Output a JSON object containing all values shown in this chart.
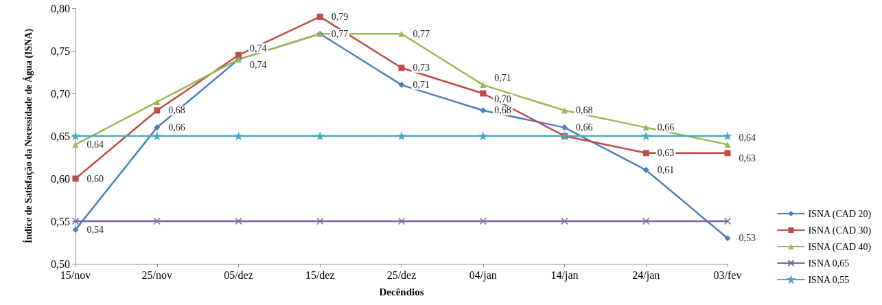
{
  "chart_data": {
    "type": "line",
    "xlabel": "Decêndios",
    "ylabel": "Índice de Satisfação da Necessidade de Água (ISNA)",
    "categories": [
      "15/nov",
      "25/nov",
      "05/dez",
      "15/dez",
      "25/dez",
      "04/jan",
      "14/jan",
      "24/jan",
      "03/fev"
    ],
    "ylim": [
      0.5,
      0.8
    ],
    "yticks": [
      {
        "value": 0.5,
        "label": "0,50"
      },
      {
        "value": 0.55,
        "label": "0,55"
      },
      {
        "value": 0.6,
        "label": "0,60"
      },
      {
        "value": 0.65,
        "label": "0,65"
      },
      {
        "value": 0.7,
        "label": "0,70"
      },
      {
        "value": 0.75,
        "label": "0,75"
      },
      {
        "value": 0.8,
        "label": "0,80"
      }
    ],
    "grid": false,
    "legend": "right",
    "series": [
      {
        "name": "ISNA (CAD 20)",
        "color": "#4a7ebb",
        "marker": "diamond",
        "values": [
          0.54,
          0.66,
          0.74,
          0.77,
          0.71,
          0.68,
          0.66,
          0.61,
          0.53
        ],
        "value_labels": [
          "0,54",
          "0,66",
          "0,74",
          null,
          "0,71",
          "0,68",
          "0,66",
          "0,61",
          "0,53"
        ]
      },
      {
        "name": "ISNA (CAD 30)",
        "color": "#be4b48",
        "marker": "square",
        "values": [
          0.6,
          0.68,
          0.745,
          0.79,
          0.73,
          0.7,
          0.65,
          0.63,
          0.63
        ],
        "value_labels": [
          "0,60",
          "0,68",
          "0,74",
          "0,79",
          "0,73",
          "0,70",
          null,
          "0,63",
          "0,63"
        ]
      },
      {
        "name": "ISNA (CAD 40)",
        "color": "#98b954",
        "marker": "triangle",
        "values": [
          0.64,
          0.69,
          0.74,
          0.77,
          0.77,
          0.71,
          0.68,
          0.66,
          0.64
        ],
        "value_labels": [
          "0,64",
          null,
          null,
          "0,77",
          "0,77",
          "0,71",
          "0,68",
          "0,66",
          "0,64"
        ]
      },
      {
        "name": "ISNA 0,65",
        "color": "#7d60a0",
        "marker": "cross",
        "values": [
          0.55,
          0.55,
          0.55,
          0.55,
          0.55,
          0.55,
          0.55,
          0.55,
          0.55
        ]
      },
      {
        "name": "ISNA 0,55",
        "color": "#46aac5",
        "marker": "star",
        "values": [
          0.65,
          0.65,
          0.65,
          0.65,
          0.65,
          0.65,
          0.65,
          0.65,
          0.65
        ]
      }
    ]
  }
}
